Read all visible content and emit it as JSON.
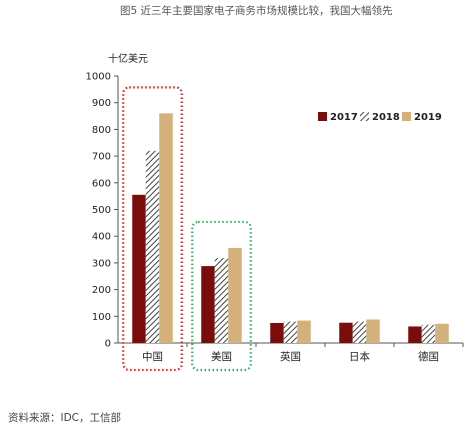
{
  "figure": {
    "title": "图5  近三年主要国家电子商务市场规模比较，我国大幅领先",
    "source": "资料来源：IDC，工信部"
  },
  "chart_data": {
    "type": "bar",
    "title": "",
    "ylabel": "十亿美元",
    "xlabel": "",
    "ylim": [
      0,
      1000
    ],
    "yticks": [
      0,
      100,
      200,
      300,
      400,
      500,
      600,
      700,
      800,
      900,
      1000
    ],
    "categories": [
      "中国",
      "美国",
      "英国",
      "日本",
      "德国"
    ],
    "series": [
      {
        "name": "2017",
        "color": "#7b0c0c",
        "pattern": "solid",
        "values": [
          555,
          288,
          75,
          76,
          62
        ]
      },
      {
        "name": "2018",
        "color": "#444444",
        "pattern": "hatched",
        "values": [
          720,
          318,
          80,
          80,
          68
        ]
      },
      {
        "name": "2019",
        "color": "#d4b07a",
        "pattern": "solid",
        "values": [
          860,
          356,
          84,
          88,
          72
        ]
      }
    ],
    "legend_position": "top-right",
    "grid": false,
    "highlight_boxes": [
      {
        "category": "中国",
        "color": "#e01b1b",
        "style": "dotted"
      },
      {
        "category": "美国",
        "color": "#2fb35c",
        "style": "dotted"
      }
    ]
  }
}
